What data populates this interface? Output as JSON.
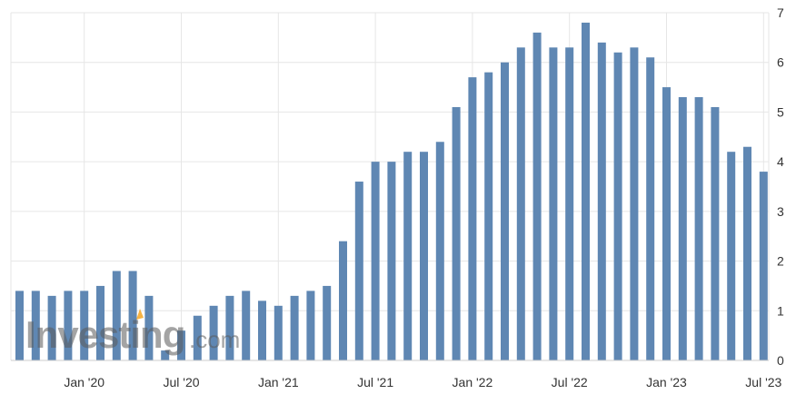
{
  "chart_data": {
    "type": "bar",
    "categories": [
      "Sep '19",
      "Oct '19",
      "Nov '19",
      "Dec '19",
      "Jan '20",
      "Feb '20",
      "Mar '20",
      "Apr '20",
      "May '20",
      "Jun '20",
      "Jul '20",
      "Aug '20",
      "Sep '20",
      "Oct '20",
      "Nov '20",
      "Dec '20",
      "Jan '21",
      "Feb '21",
      "Mar '21",
      "Apr '21",
      "May '21",
      "Jun '21",
      "Jul '21",
      "Aug '21",
      "Sep '21",
      "Oct '21",
      "Nov '21",
      "Dec '21",
      "Jan '22",
      "Feb '22",
      "Mar '22",
      "Apr '22",
      "May '22",
      "Jun '22",
      "Jul '22",
      "Aug '22",
      "Sep '22",
      "Oct '22",
      "Nov '22",
      "Dec '22",
      "Jan '23",
      "Feb '23",
      "Mar '23",
      "Apr '23",
      "May '23",
      "Jun '23",
      "Jul '23"
    ],
    "values": [
      1.4,
      1.4,
      1.3,
      1.4,
      1.4,
      1.5,
      1.8,
      1.8,
      1.3,
      0.2,
      0.6,
      0.9,
      1.1,
      1.3,
      1.4,
      1.2,
      1.1,
      1.3,
      1.4,
      1.5,
      2.4,
      3.6,
      4.0,
      4.0,
      4.2,
      4.2,
      4.4,
      5.1,
      5.7,
      5.8,
      6.0,
      6.3,
      6.6,
      6.3,
      6.3,
      6.8,
      6.4,
      6.2,
      6.3,
      6.1,
      5.5,
      5.3,
      5.3,
      5.1,
      4.2,
      4.3,
      3.8
    ],
    "x_tick_labels": [
      "Jan '20",
      "Jul '20",
      "Jan '21",
      "Jul '21",
      "Jan '22",
      "Jul '22",
      "Jan '23",
      "Jul '23"
    ],
    "x_tick_categories": [
      "Jan '20",
      "Jul '20",
      "Jan '21",
      "Jul '21",
      "Jan '22",
      "Jul '22",
      "Jan '23",
      "Jul '23"
    ],
    "ylim": [
      0,
      7
    ],
    "y_ticks": [
      0,
      1,
      2,
      3,
      4,
      5,
      6,
      7
    ],
    "y_axis_side": "right",
    "grid": true,
    "title": "",
    "xlabel": "",
    "ylabel": "",
    "colors": {
      "bar": "#5f87b3",
      "grid": "#e6e6e6",
      "axis": "#cccccc"
    }
  },
  "watermark": {
    "brand": "Investing",
    "suffix": ".com"
  }
}
